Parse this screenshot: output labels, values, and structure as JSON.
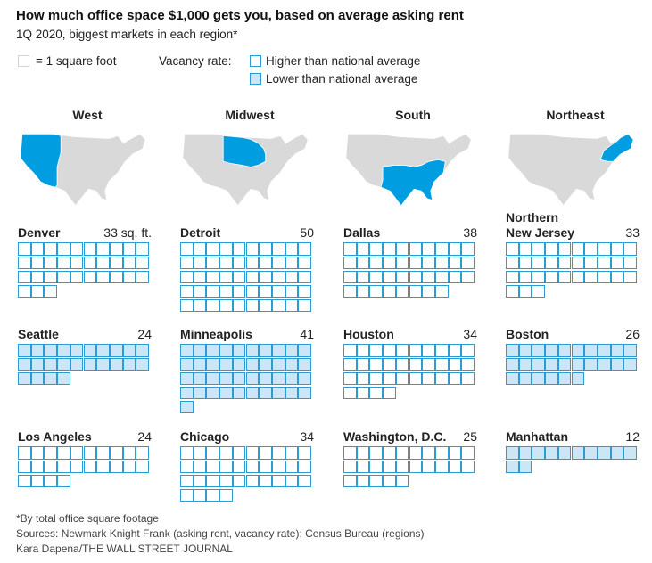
{
  "chart_data": {
    "type": "waffle",
    "title": "How much office space $1,000 gets you, based on average asking rent",
    "subtitle": "1Q 2020, biggest markets in each region*",
    "legend": {
      "unit_label": "= 1 square foot",
      "vacancy_label": "Vacancy rate:",
      "higher_label": "Higher than national average",
      "lower_label": "Lower than national average"
    },
    "colors": {
      "outline": "#2b9bd3",
      "lower_fill": "#cde6f6",
      "map_highlight": "#009ee0",
      "map_gray": "#d9d9d9"
    },
    "regions": [
      {
        "name": "West",
        "map_icon": "us-map-west-highlight-icon",
        "markets": [
          {
            "name": "Denver",
            "value": 33,
            "value_label": "33 sq. ft.",
            "vacancy": "higher"
          },
          {
            "name": "Seattle",
            "value": 24,
            "value_label": "24",
            "vacancy": "lower"
          },
          {
            "name": "Los Angeles",
            "value": 24,
            "value_label": "24",
            "vacancy": "higher"
          }
        ]
      },
      {
        "name": "Midwest",
        "map_icon": "us-map-midwest-highlight-icon",
        "markets": [
          {
            "name": "Detroit",
            "value": 50,
            "value_label": "50",
            "vacancy": "higher"
          },
          {
            "name": "Minneapolis",
            "value": 41,
            "value_label": "41",
            "vacancy": "lower"
          },
          {
            "name": "Chicago",
            "value": 34,
            "value_label": "34",
            "vacancy": "higher"
          }
        ]
      },
      {
        "name": "South",
        "map_icon": "us-map-south-highlight-icon",
        "markets": [
          {
            "name": "Dallas",
            "value": 38,
            "value_label": "38",
            "vacancy": "higher"
          },
          {
            "name": "Houston",
            "value": 34,
            "value_label": "34",
            "vacancy": "higher"
          },
          {
            "name": "Washington, D.C.",
            "value": 25,
            "value_label": "25",
            "vacancy": "higher"
          }
        ]
      },
      {
        "name": "Northeast",
        "map_icon": "us-map-northeast-highlight-icon",
        "markets": [
          {
            "name": "Northern New Jersey",
            "value": 33,
            "value_label": "33",
            "vacancy": "higher"
          },
          {
            "name": "Boston",
            "value": 26,
            "value_label": "26",
            "vacancy": "lower"
          },
          {
            "name": "Manhattan",
            "value": 12,
            "value_label": "12",
            "vacancy": "lower"
          }
        ]
      }
    ],
    "notes": [
      "*By total office square footage",
      "Sources: Newmark Knight Frank (asking rent, vacancy rate); Census Bureau (regions)",
      "Kara Dapena/THE WALL STREET JOURNAL"
    ]
  }
}
